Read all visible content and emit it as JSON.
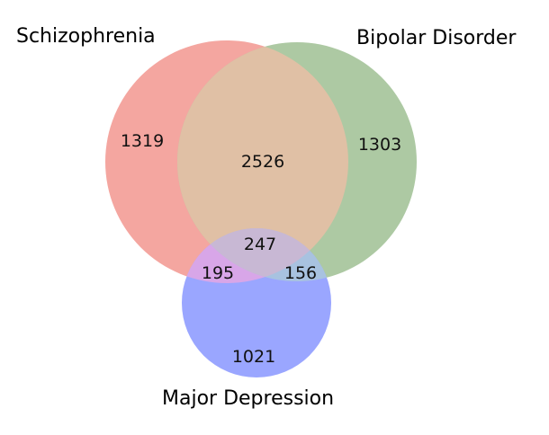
{
  "diagram": {
    "type": "venn3",
    "sets": [
      {
        "id": "schizophrenia",
        "name": "Schizophrenia",
        "color": "#F4A6A0"
      },
      {
        "id": "bipolar",
        "name": "Bipolar Disorder",
        "color": "#ADC9A3"
      },
      {
        "id": "depression",
        "name": "Major Depression",
        "color": "#9AA6FF"
      }
    ],
    "overlap_colors": {
      "schizophrenia_bipolar": "#E0C0A5",
      "schizophrenia_depression": "#D8A6E8",
      "bipolar_depression": "#A8C2E0",
      "all_three": "#C8B8D4"
    },
    "regions": {
      "schizophrenia_only": "1319",
      "bipolar_only": "1303",
      "depression_only": "1021",
      "schizophrenia_bipolar": "2526",
      "schizophrenia_depression": "195",
      "bipolar_depression": "156",
      "all_three": "247"
    }
  }
}
